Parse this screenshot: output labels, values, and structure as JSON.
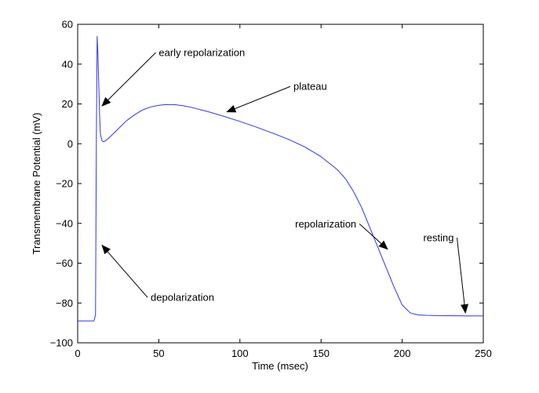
{
  "chart_data": {
    "type": "line",
    "title": "",
    "xlabel": "Time (msec)",
    "ylabel": "Transmembrane Potential (mV)",
    "xlim": [
      0,
      250
    ],
    "ylim": [
      -100,
      60
    ],
    "x_ticks": [
      0,
      50,
      100,
      150,
      200,
      250
    ],
    "y_ticks": [
      60,
      40,
      20,
      0,
      -20,
      -40,
      -60,
      -80,
      -100
    ],
    "x_tick_labels": [
      "0",
      "50",
      "100",
      "150",
      "200",
      "250"
    ],
    "y_tick_labels": [
      "60",
      "40",
      "20",
      "0",
      "−20",
      "−40",
      "−60",
      "−80",
      "−100"
    ],
    "grid": false,
    "series": [
      {
        "color": "#3333ee",
        "x": [
          0,
          10,
          11,
          11.5,
          12,
          12.5,
          13,
          13.5,
          14,
          15,
          16,
          18,
          20,
          25,
          30,
          35,
          40,
          45,
          50,
          55,
          60,
          65,
          70,
          80,
          90,
          100,
          110,
          120,
          130,
          140,
          150,
          160,
          165,
          170,
          175,
          180,
          185,
          190,
          195,
          200,
          205,
          210,
          215,
          220,
          230,
          240,
          250
        ],
        "y": [
          -89,
          -89,
          -86,
          0,
          54,
          45,
          30,
          15,
          5,
          1.5,
          1,
          2,
          3.5,
          7.5,
          11.5,
          14.5,
          17,
          18.5,
          19.3,
          19.7,
          19.6,
          19.1,
          18.3,
          16.2,
          13.8,
          11.2,
          8.4,
          5.4,
          2.2,
          -1.6,
          -6.5,
          -13,
          -17.5,
          -24,
          -32,
          -42,
          -52,
          -62,
          -72,
          -81,
          -85,
          -86,
          -86.2,
          -86.3,
          -86.4,
          -86.5,
          -86.5
        ]
      }
    ],
    "annotations": [
      {
        "label": "early repolarization",
        "x": 50,
        "y": 44,
        "arrow_to": [
          15,
          19
        ]
      },
      {
        "label": "plateau",
        "x": 133,
        "y": 27,
        "arrow_to": [
          92,
          16
        ]
      },
      {
        "label": "repolarization",
        "x": 134,
        "y": -42,
        "arrow_to": [
          191,
          -53
        ]
      },
      {
        "label": "resting",
        "x": 213,
        "y": -49,
        "arrow_to": [
          239,
          -85
        ]
      },
      {
        "label": "depolarization",
        "x": 45,
        "y": -79,
        "arrow_to": [
          15,
          -51
        ]
      }
    ]
  }
}
